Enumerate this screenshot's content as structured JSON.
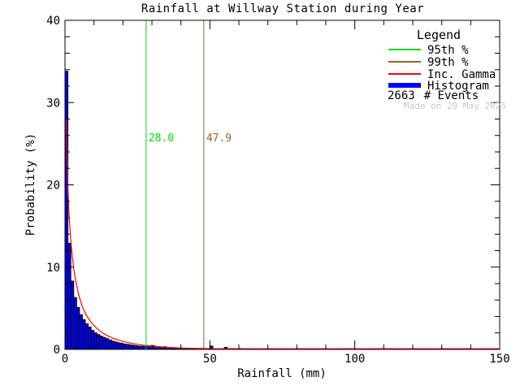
{
  "title": "Rainfall at Willway Station during Year",
  "colors": {
    "background": "#FFFFFF",
    "frame": "#000000",
    "text": "#000000",
    "percentile_95": "#00DD00",
    "percentile_99": "#A0622D",
    "gamma_curve": "#FF0000",
    "histogram_fill": "#0000FF",
    "histogram_outline": "#000000",
    "made_on_text": "#C8C8C8"
  },
  "legend": {
    "title": "Legend",
    "items": [
      {
        "label": "95th %",
        "color_key": "percentile_95",
        "swatch": "line"
      },
      {
        "label": "99th %",
        "color_key": "percentile_99",
        "swatch": "line"
      },
      {
        "label": "Inc. Gamma",
        "color_key": "gamma_curve",
        "swatch": "line"
      },
      {
        "label": "Histogram",
        "color_key": "histogram_fill",
        "swatch": "thick-line"
      }
    ],
    "events_count": "2663",
    "events_label": "# Events",
    "made_on": "Made on 29 May 2025"
  },
  "chart_data": {
    "type": "bar",
    "subtype": "histogram-with-gamma-fit",
    "title": "Rainfall at Willway Station during Year",
    "xlabel": "Rainfall (mm)",
    "ylabel": "Probability (%)",
    "xlim": [
      0,
      150
    ],
    "ylim": [
      0,
      40
    ],
    "x_major_ticks": [
      0,
      50,
      100,
      150
    ],
    "x_minor_step": 10,
    "y_major_ticks": [
      0,
      10,
      20,
      30,
      40
    ],
    "y_minor_step": 2,
    "grid": false,
    "legend_position": "top-right-inside",
    "n_events": 2663,
    "percentile_lines": [
      {
        "name": "95th percentile",
        "value_mm": 28.0,
        "label": "28.0",
        "color_key": "percentile_95"
      },
      {
        "name": "99th percentile",
        "value_mm": 47.9,
        "label": "47.9",
        "color_key": "percentile_99"
      }
    ],
    "histogram": {
      "bin_width_mm": 1,
      "start_mm": 0,
      "probabilities_pct": [
        33.8,
        12.9,
        8.3,
        6.3,
        5.1,
        4.2,
        3.6,
        3.1,
        2.7,
        2.3,
        2.0,
        1.8,
        1.6,
        1.45,
        1.3,
        1.15,
        1.0,
        0.9,
        0.8,
        0.75,
        0.65,
        0.6,
        0.55,
        0.5,
        0.45,
        0.4,
        0.38,
        0.35,
        0.4,
        0.28,
        0.45,
        0.22,
        0.3,
        0.18,
        0.32,
        0.1,
        0.2,
        0.1,
        0.14,
        0.08,
        0.12,
        0.06,
        0.1,
        0.05,
        0.08,
        0.05,
        0.08,
        0.12,
        0.05,
        0.03,
        0.4,
        0.03,
        0.02,
        0.02,
        0.03,
        0.25,
        0.02,
        0.1,
        0.02,
        0.01,
        0.1,
        0.01,
        0.01,
        0.01,
        0.02,
        0.01,
        0.01,
        0.0,
        0.01,
        0.0,
        0.01,
        0.0,
        0.0,
        0.01,
        0.0,
        0.0,
        0.01,
        0.0,
        0.0,
        0.0,
        0.08,
        0.0,
        0.0,
        0.0,
        0.0,
        0.0,
        0.0,
        0.0,
        0.0,
        0.0,
        0.0,
        0.0,
        0.0,
        0.0,
        0.0,
        0.0,
        0.0,
        0.0,
        0.08,
        0.0
      ]
    },
    "gamma_curve_points": [
      [
        0.4,
        28.0
      ],
      [
        0.6,
        24.5
      ],
      [
        0.8,
        21.8
      ],
      [
        1.0,
        19.6
      ],
      [
        1.3,
        17.2
      ],
      [
        1.6,
        15.3
      ],
      [
        2.0,
        13.3
      ],
      [
        2.5,
        11.4
      ],
      [
        3.0,
        9.9
      ],
      [
        3.5,
        8.7
      ],
      [
        4.0,
        7.8
      ],
      [
        4.5,
        7.0
      ],
      [
        5.0,
        6.3
      ],
      [
        6.0,
        5.2
      ],
      [
        7.0,
        4.4
      ],
      [
        8.0,
        3.8
      ],
      [
        9.0,
        3.3
      ],
      [
        10.0,
        2.9
      ],
      [
        11.0,
        2.55
      ],
      [
        12.0,
        2.25
      ],
      [
        13.0,
        2.0
      ],
      [
        14.0,
        1.8
      ],
      [
        15.0,
        1.6
      ],
      [
        16.0,
        1.45
      ],
      [
        17.0,
        1.3
      ],
      [
        18.0,
        1.18
      ],
      [
        19.0,
        1.07
      ],
      [
        20.0,
        0.97
      ],
      [
        22.0,
        0.8
      ],
      [
        24.0,
        0.67
      ],
      [
        26.0,
        0.56
      ],
      [
        28.0,
        0.47
      ],
      [
        30.0,
        0.4
      ],
      [
        33.0,
        0.31
      ],
      [
        36.0,
        0.24
      ],
      [
        40.0,
        0.17
      ],
      [
        44.0,
        0.13
      ],
      [
        48.0,
        0.1
      ],
      [
        52.0,
        0.07
      ],
      [
        56.0,
        0.055
      ],
      [
        60.0,
        0.04
      ],
      [
        70.0,
        0.022
      ],
      [
        80.0,
        0.012
      ],
      [
        90.0,
        0.007
      ],
      [
        100.0,
        0.004
      ],
      [
        120.0,
        0.001
      ],
      [
        150.0,
        0.0
      ]
    ]
  }
}
